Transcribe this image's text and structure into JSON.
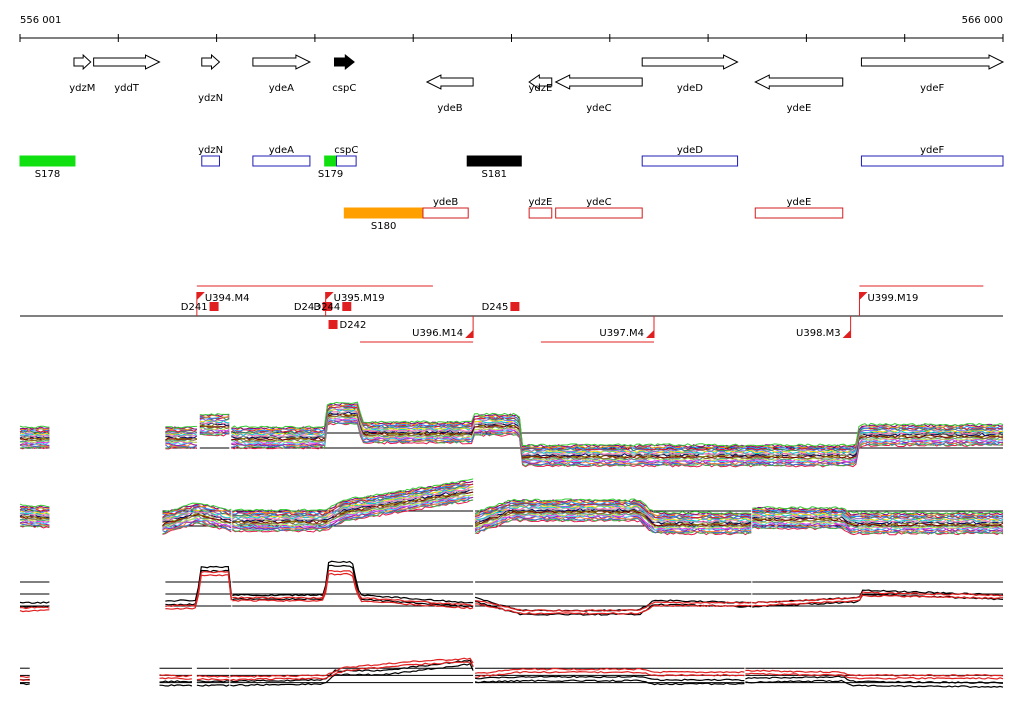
{
  "ruler": {
    "start_label": "556 001",
    "end_label": "566 000",
    "start": 556001,
    "end": 566000
  },
  "colors": {
    "gene_outline": "#000000",
    "fwd_region": "#1c1cb4",
    "rev_region": "#d21c1c",
    "track_red": "#e02020",
    "green": "#10e010",
    "orange": "#ffa000",
    "black": "#000000"
  },
  "genes": [
    {
      "name": "ydzM",
      "strand": "+",
      "start": 556550,
      "end": 556720,
      "fill": "none"
    },
    {
      "name": "yddT",
      "strand": "+",
      "start": 556750,
      "end": 557420,
      "fill": "none"
    },
    {
      "name": "ydzN",
      "strand": "+",
      "start": 557850,
      "end": 558030,
      "fill": "none"
    },
    {
      "name": "ydeA",
      "strand": "+",
      "start": 558370,
      "end": 558950,
      "fill": "none"
    },
    {
      "name": "cspC",
      "strand": "+",
      "start": 559200,
      "end": 559400,
      "fill": "#000000"
    },
    {
      "name": "ydeB",
      "strand": "-",
      "start": 560140,
      "end": 560610,
      "fill": "none"
    },
    {
      "name": "ydzE",
      "strand": "-",
      "start": 561180,
      "end": 561410,
      "fill": "none"
    },
    {
      "name": "ydeC",
      "strand": "-",
      "start": 561450,
      "end": 562330,
      "fill": "none"
    },
    {
      "name": "ydeD",
      "strand": "+",
      "start": 562330,
      "end": 563300,
      "fill": "none"
    },
    {
      "name": "ydeE",
      "strand": "-",
      "start": 563480,
      "end": 564370,
      "fill": "none"
    },
    {
      "name": "ydeF",
      "strand": "+",
      "start": 564560,
      "end": 566000,
      "fill": "none"
    }
  ],
  "transcripts_fwd": [
    {
      "label": "S178",
      "start": 556001,
      "end": 556560,
      "fill": "#10e010"
    },
    {
      "label": "ydzN",
      "start": 557850,
      "end": 558030,
      "fill": "none"
    },
    {
      "label": "ydeA",
      "start": 558370,
      "end": 558950,
      "fill": "none"
    },
    {
      "label": "S179",
      "start": 559100,
      "end": 559220,
      "fill": "#10e010"
    },
    {
      "label": "cspC",
      "start": 559220,
      "end": 559420,
      "fill": "none"
    },
    {
      "label": "S181",
      "start": 560550,
      "end": 561100,
      "fill": "#000000"
    },
    {
      "label": "ydeD",
      "start": 562330,
      "end": 563300,
      "fill": "none"
    },
    {
      "label": "ydeF",
      "start": 564560,
      "end": 566000,
      "fill": "none"
    }
  ],
  "transcripts_rev": [
    {
      "label": "S180",
      "start": 559300,
      "end": 560100,
      "fill": "#ffa000"
    },
    {
      "label": "ydeB",
      "start": 560100,
      "end": 560560,
      "fill": "none"
    },
    {
      "label": "ydzE",
      "start": 561180,
      "end": 561410,
      "fill": "none"
    },
    {
      "label": "ydeC",
      "start": 561450,
      "end": 562330,
      "fill": "none"
    },
    {
      "label": "ydeE",
      "start": 563480,
      "end": 564370,
      "fill": "none"
    }
  ],
  "upshifts_fwd": [
    {
      "label": "U394.M4",
      "pos": 557800,
      "span_end": 560200
    },
    {
      "label": "U395.M19",
      "pos": 559110,
      "span_end": 560200
    },
    {
      "label": "U399.M19",
      "pos": 564540,
      "span_end": 565800
    }
  ],
  "upshifts_rev": [
    {
      "label": "U396.M14",
      "pos": 560610,
      "span_start": 559460
    },
    {
      "label": "U397.M4",
      "pos": 562450,
      "span_start": 561300
    },
    {
      "label": "U398.M3",
      "pos": 564450,
      "span_start": null
    }
  ],
  "downshifts": [
    {
      "label": "D241",
      "pos": 557970,
      "side": "up"
    },
    {
      "label": "D243",
      "pos": 559120,
      "side": "up"
    },
    {
      "label": "D244",
      "pos": 559320,
      "side": "up"
    },
    {
      "label": "D242",
      "pos": 559180,
      "side": "down"
    },
    {
      "label": "D245",
      "pos": 561030,
      "side": "up"
    }
  ],
  "tracks": [
    {
      "name": "expression-fwd-conditions",
      "type": "multi",
      "segments": [
        [
          556001,
          556300
        ],
        [
          557480,
          557800
        ],
        [
          557830,
          558130
        ],
        [
          558150,
          566000
        ]
      ],
      "profile": [
        [
          556001,
          0.45
        ],
        [
          557800,
          0.45
        ],
        [
          557820,
          0.7
        ],
        [
          558130,
          0.7
        ],
        [
          558150,
          0.45
        ],
        [
          559100,
          0.45
        ],
        [
          559130,
          0.92
        ],
        [
          559440,
          0.92
        ],
        [
          559480,
          0.55
        ],
        [
          560600,
          0.55
        ],
        [
          560620,
          0.7
        ],
        [
          561080,
          0.7
        ],
        [
          561100,
          0.1
        ],
        [
          564500,
          0.1
        ],
        [
          564540,
          0.5
        ],
        [
          566000,
          0.5
        ]
      ]
    },
    {
      "name": "expression-rev-conditions",
      "type": "multi",
      "segments": [
        [
          556001,
          556300
        ],
        [
          557450,
          558150
        ],
        [
          558160,
          560610
        ],
        [
          560630,
          563440
        ],
        [
          563450,
          566000
        ]
      ],
      "profile": [
        [
          556001,
          0.45
        ],
        [
          557450,
          0.3
        ],
        [
          557800,
          0.5
        ],
        [
          558150,
          0.35
        ],
        [
          559100,
          0.35
        ],
        [
          559300,
          0.55
        ],
        [
          560610,
          0.95
        ],
        [
          560630,
          0.3
        ],
        [
          561000,
          0.55
        ],
        [
          562300,
          0.55
        ],
        [
          562450,
          0.3
        ],
        [
          563440,
          0.3
        ],
        [
          563450,
          0.4
        ],
        [
          564370,
          0.4
        ],
        [
          564450,
          0.3
        ],
        [
          566000,
          0.3
        ]
      ]
    },
    {
      "name": "expression-fwd-summary",
      "type": "two",
      "segments": [
        [
          556001,
          556300
        ],
        [
          557480,
          558150
        ],
        [
          558160,
          560610
        ],
        [
          560630,
          563440
        ],
        [
          563450,
          566000
        ]
      ],
      "black": [
        [
          556001,
          0.2
        ],
        [
          557800,
          0.25
        ],
        [
          557840,
          0.9
        ],
        [
          558130,
          0.9
        ],
        [
          558150,
          0.35
        ],
        [
          559100,
          0.35
        ],
        [
          559130,
          1.0
        ],
        [
          559380,
          1.0
        ],
        [
          559400,
          0.8
        ],
        [
          559460,
          0.35
        ],
        [
          560610,
          0.2
        ],
        [
          560630,
          0.3
        ],
        [
          561100,
          0.05
        ],
        [
          562300,
          0.05
        ],
        [
          562450,
          0.25
        ],
        [
          563440,
          0.2
        ],
        [
          563450,
          0.2
        ],
        [
          564540,
          0.3
        ],
        [
          564560,
          0.45
        ],
        [
          566000,
          0.35
        ]
      ],
      "red": [
        [
          556001,
          0.1
        ],
        [
          557800,
          0.15
        ],
        [
          557840,
          0.8
        ],
        [
          558130,
          0.8
        ],
        [
          558150,
          0.3
        ],
        [
          559100,
          0.3
        ],
        [
          559130,
          0.82
        ],
        [
          559380,
          0.82
        ],
        [
          559400,
          0.6
        ],
        [
          559460,
          0.3
        ],
        [
          560610,
          0.15
        ],
        [
          560630,
          0.25
        ],
        [
          561100,
          0.05
        ],
        [
          562300,
          0.05
        ],
        [
          562450,
          0.2
        ],
        [
          563440,
          0.2
        ],
        [
          563450,
          0.2
        ],
        [
          564540,
          0.3
        ],
        [
          564560,
          0.4
        ],
        [
          566000,
          0.35
        ]
      ]
    },
    {
      "name": "expression-rev-summary",
      "type": "two",
      "segments": [
        [
          556001,
          556100
        ],
        [
          557420,
          557750
        ],
        [
          557800,
          558130
        ],
        [
          558140,
          560610
        ],
        [
          560630,
          563370
        ],
        [
          563380,
          566000
        ]
      ],
      "black": [
        [
          556001,
          0.2
        ],
        [
          557420,
          0.15
        ],
        [
          558140,
          0.15
        ],
        [
          559100,
          0.2
        ],
        [
          559200,
          0.5
        ],
        [
          559700,
          0.5
        ],
        [
          560600,
          0.85
        ],
        [
          560630,
          0.25
        ],
        [
          561100,
          0.3
        ],
        [
          562300,
          0.3
        ],
        [
          562450,
          0.2
        ],
        [
          563370,
          0.2
        ],
        [
          563380,
          0.25
        ],
        [
          564370,
          0.3
        ],
        [
          564450,
          0.15
        ],
        [
          566000,
          0.1
        ]
      ],
      "red": [
        [
          556001,
          0.3
        ],
        [
          557420,
          0.35
        ],
        [
          558140,
          0.3
        ],
        [
          559100,
          0.35
        ],
        [
          559300,
          0.6
        ],
        [
          560000,
          0.8
        ],
        [
          560600,
          0.9
        ],
        [
          560630,
          0.4
        ],
        [
          561100,
          0.55
        ],
        [
          562300,
          0.55
        ],
        [
          562450,
          0.45
        ],
        [
          563370,
          0.45
        ],
        [
          563380,
          0.5
        ],
        [
          564370,
          0.45
        ],
        [
          564450,
          0.35
        ],
        [
          566000,
          0.35
        ]
      ]
    }
  ],
  "chart_data": {
    "type": "line",
    "title": "",
    "xlabel": "",
    "ylabel": "",
    "xlim": [
      556001,
      566000
    ],
    "series": []
  }
}
